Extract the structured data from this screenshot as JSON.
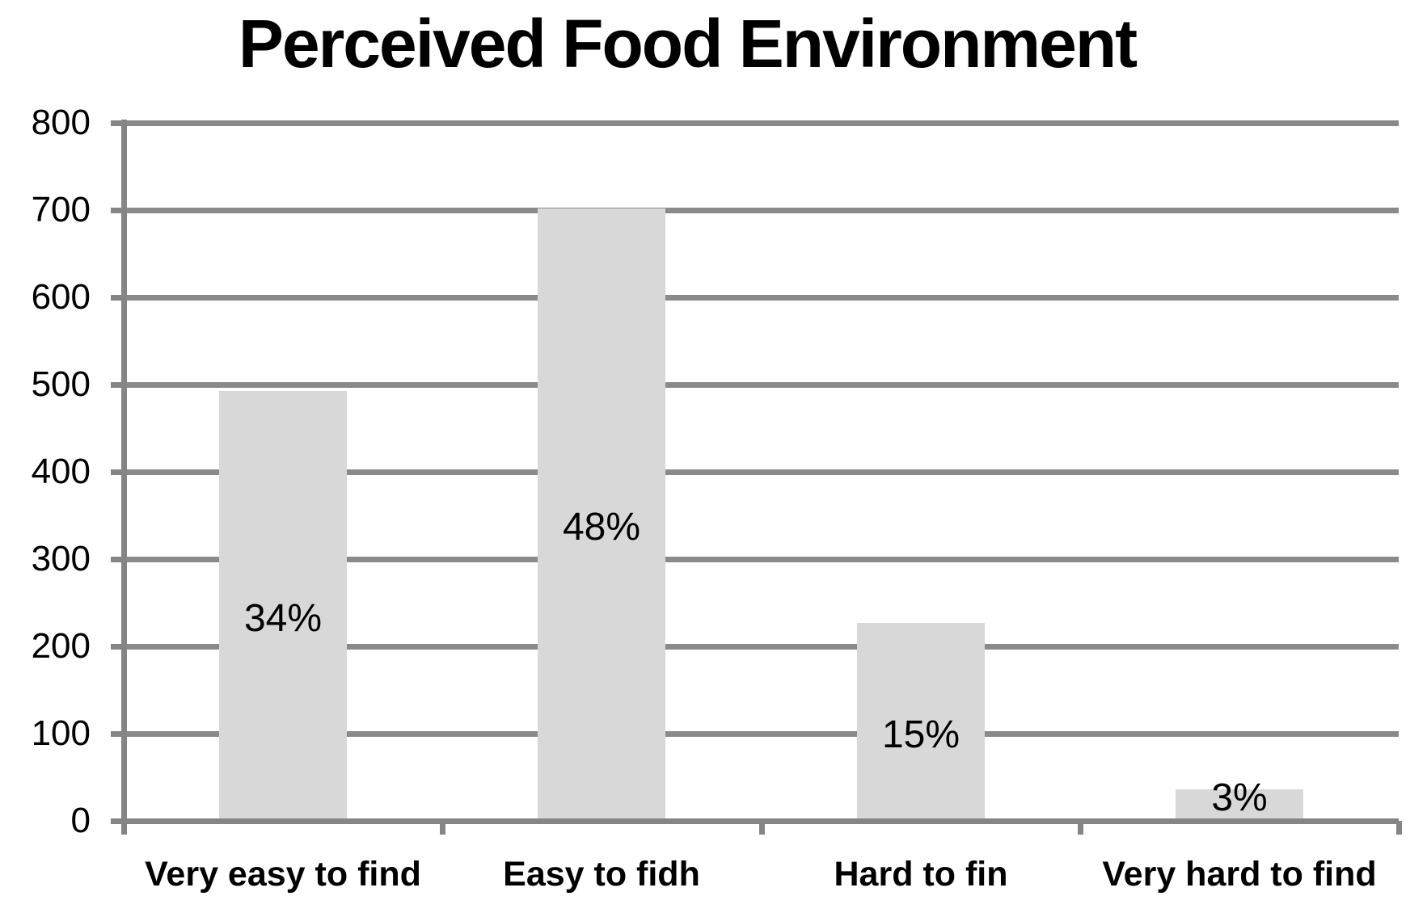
{
  "page": {
    "background": "#FFFFFF"
  },
  "chart_data": {
    "type": "bar",
    "title": "Perceived Food Environment",
    "categories": [
      "Very easy to find",
      "Easy to fidh",
      "Hard to fin",
      "Very hard to find"
    ],
    "values": [
      493,
      702,
      227,
      36
    ],
    "data_labels": [
      "34%",
      "48%",
      "15%",
      "3%"
    ],
    "xlabel": "",
    "ylabel": "",
    "ylim": [
      0,
      800
    ],
    "yticks": [
      0,
      100,
      200,
      300,
      400,
      500,
      600,
      700,
      800
    ],
    "grid": "horizontal",
    "legend": "none",
    "data_label_position": "center",
    "bar_color": "#D8D8D8",
    "gridline_color": "#8A8A8A",
    "axis_color": "#858585",
    "text_color": "#000000"
  }
}
